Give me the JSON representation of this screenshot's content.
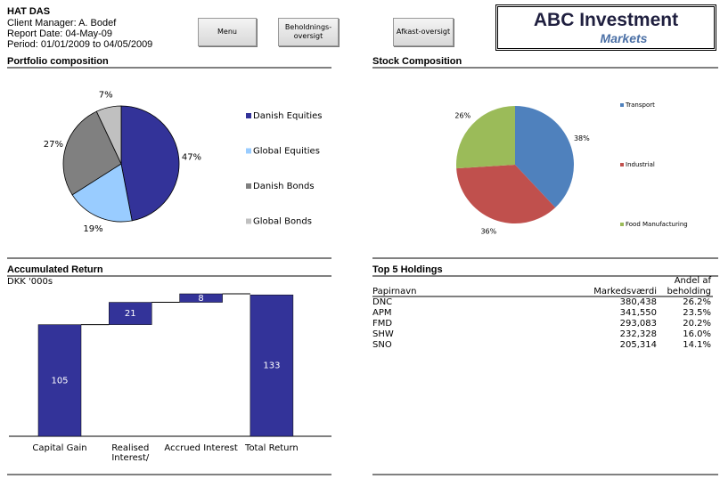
{
  "header": {
    "title": "HAT DAS",
    "client_manager": "Client Manager: A. Bodef",
    "report_date": "Report Date: 04-May-09",
    "period": "Period: 01/01/2009 to 04/05/2009"
  },
  "buttons": [
    "Menu",
    "Beholdnings-\noversigt",
    "Afkast-oversigt"
  ],
  "logo": {
    "title": "ABC Investment",
    "subtitle": "Markets"
  },
  "chart_data": [
    {
      "type": "pie",
      "title": "Portfolio composition",
      "categories": [
        "Danish Equities",
        "Global Equities",
        "Danish Bonds",
        "Global Bonds"
      ],
      "values": [
        47,
        19,
        27,
        7
      ],
      "value_labels": [
        "47%",
        "19%",
        "27%",
        "7%"
      ],
      "colors": [
        "#333399",
        "#99ccff",
        "#808080",
        "#c0c0c0"
      ]
    },
    {
      "type": "pie",
      "title": "Stock Composition",
      "categories": [
        "Transport",
        "Industrial",
        "Food Manufacturing"
      ],
      "values": [
        38,
        36,
        26
      ],
      "value_labels": [
        "38%",
        "36%",
        "26%"
      ],
      "colors": [
        "#4f81bd",
        "#c0504d",
        "#9bbb59"
      ]
    },
    {
      "type": "waterfall",
      "title": "Accumulated Return",
      "subtitle": "DKK '000s",
      "categories": [
        "Capital Gain",
        "Realised\nInterest/",
        "Accrued Interest",
        "Total Return"
      ],
      "values": [
        105,
        21,
        8,
        133
      ],
      "color": "#333399"
    }
  ],
  "table": {
    "title": "Top 5 Holdings",
    "columns": [
      "Papirnavn",
      "Markedsværdi",
      "Andel af\nbeholding"
    ],
    "rows": [
      [
        "DNC",
        "380,438",
        "26.2%"
      ],
      [
        "APM",
        "341,550",
        "23.5%"
      ],
      [
        "FMD",
        "293,083",
        "20.2%"
      ],
      [
        "SHW",
        "232,328",
        "16.0%"
      ],
      [
        "SNO",
        "205,314",
        "14.1%"
      ]
    ]
  }
}
